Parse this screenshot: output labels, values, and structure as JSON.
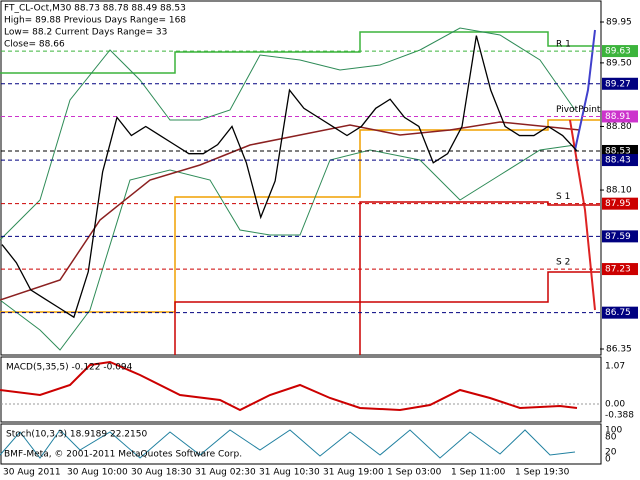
{
  "header": {
    "symbol_line": "FT_CL-Oct,M30  88.73 88.78 88.49 88.53",
    "high_line": "High= 89.88   Previous Days Range= 168",
    "low_line": "Low= 88.2   Current Days Range= 33",
    "close_line": "Close= 88.66"
  },
  "price_axis": {
    "range": [
      86.35,
      89.95
    ],
    "ticks": [
      {
        "value": 89.95,
        "label": "89.95"
      },
      {
        "value": 89.5,
        "label": "89.50"
      },
      {
        "value": 88.8,
        "label": "88.80"
      },
      {
        "value": 88.1,
        "label": "88.10"
      },
      {
        "value": 86.35,
        "label": "86.35"
      }
    ]
  },
  "levels": [
    {
      "value": 89.63,
      "label": "89.63",
      "color": "#3cb43c",
      "tag": "R 1"
    },
    {
      "value": 89.27,
      "label": "89.27",
      "color": "#000080"
    },
    {
      "value": 88.91,
      "label": "88.91",
      "color": "#cc33cc",
      "tag": "PivotPoint"
    },
    {
      "value": 88.53,
      "label": "88.53",
      "color": "#000000"
    },
    {
      "value": 88.43,
      "label": "88.43",
      "color": "#000080"
    },
    {
      "value": 87.95,
      "label": "87.95",
      "color": "#cc0000",
      "tag": "S 1"
    },
    {
      "value": 87.59,
      "label": "87.59",
      "color": "#000080"
    },
    {
      "value": 87.23,
      "label": "87.23",
      "color": "#cc0000",
      "tag": "S 2"
    },
    {
      "value": 86.75,
      "label": "86.75",
      "color": "#000080"
    }
  ],
  "close": [
    87.5,
    87.3,
    87.0,
    86.9,
    86.8,
    86.7,
    87.2,
    88.3,
    88.9,
    88.7,
    88.8,
    88.7,
    88.6,
    88.5,
    88.5,
    88.6,
    88.8,
    88.4,
    87.8,
    88.2,
    89.2,
    89.0,
    88.9,
    88.8,
    88.7,
    88.8,
    89.0,
    89.1,
    88.9,
    88.8,
    88.4,
    88.5,
    88.8,
    89.8,
    89.2,
    88.8,
    88.7,
    88.7,
    88.8,
    88.7,
    88.53
  ],
  "time_axis": [
    "30 Aug 2011",
    "30 Aug 10:00",
    "30 Aug 18:30",
    "31 Aug 02:30",
    "31 Aug 10:30",
    "31 Aug 19:00",
    "1 Sep 03:00",
    "1 Sep 11:00",
    "1 Sep 19:30"
  ],
  "macd": {
    "title": "MACD(5,35,5) -0.122 -0.094",
    "ticks": [
      "1.07",
      "0.00",
      "-0.388"
    ]
  },
  "stoch": {
    "title": "Stoch(10,3,3) 18.9189 22.2150",
    "ticks": [
      "100",
      "80",
      "20",
      "0"
    ]
  },
  "copyright": "BMF-Meta, © 2001-2011 MetaQuotes Software Corp."
}
